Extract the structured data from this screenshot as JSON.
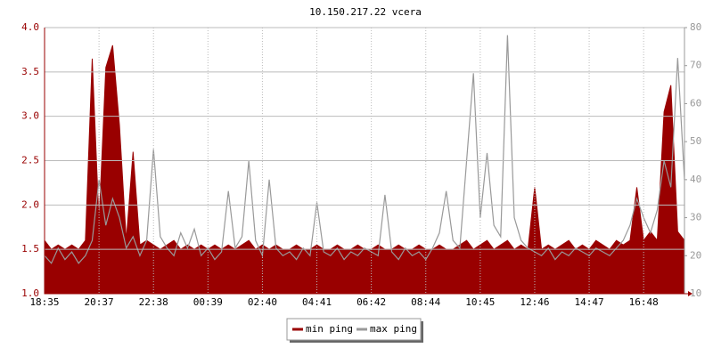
{
  "chart_data": {
    "type": "line",
    "title": "10.150.217.22 vcera",
    "categories": [
      "18:35",
      null,
      null,
      null,
      null,
      null,
      null,
      null,
      "20:37",
      null,
      null,
      null,
      null,
      null,
      null,
      null,
      "22:38",
      null,
      null,
      null,
      null,
      null,
      null,
      null,
      "00:39",
      null,
      null,
      null,
      null,
      null,
      null,
      null,
      "02:40",
      null,
      null,
      null,
      null,
      null,
      null,
      null,
      "04:41",
      null,
      null,
      null,
      null,
      null,
      null,
      null,
      "06:42",
      null,
      null,
      null,
      null,
      null,
      null,
      null,
      "08:44",
      null,
      null,
      null,
      null,
      null,
      null,
      null,
      "10:45",
      null,
      null,
      null,
      null,
      null,
      null,
      null,
      "12:46",
      null,
      null,
      null,
      null,
      null,
      null,
      null,
      "14:47",
      null,
      null,
      null,
      null,
      null,
      null,
      null,
      "16:48",
      null,
      null,
      null,
      null,
      null,
      null
    ],
    "series": [
      {
        "name": "min ping",
        "color": "#990000",
        "axis": "y",
        "values": [
          1.6,
          1.5,
          1.55,
          1.5,
          1.55,
          1.5,
          1.6,
          3.65,
          1.8,
          3.55,
          3.8,
          2.9,
          1.6,
          2.6,
          1.55,
          1.6,
          1.55,
          1.5,
          1.55,
          1.6,
          1.5,
          1.55,
          1.5,
          1.55,
          1.5,
          1.55,
          1.5,
          1.55,
          1.5,
          1.55,
          1.6,
          1.5,
          1.55,
          1.5,
          1.55,
          1.5,
          1.5,
          1.55,
          1.5,
          1.5,
          1.55,
          1.5,
          1.5,
          1.55,
          1.5,
          1.5,
          1.55,
          1.5,
          1.5,
          1.55,
          1.5,
          1.5,
          1.55,
          1.5,
          1.5,
          1.55,
          1.5,
          1.5,
          1.55,
          1.5,
          1.5,
          1.55,
          1.6,
          1.5,
          1.55,
          1.6,
          1.5,
          1.55,
          1.6,
          1.5,
          1.55,
          1.5,
          2.2,
          1.5,
          1.55,
          1.5,
          1.55,
          1.6,
          1.5,
          1.55,
          1.5,
          1.6,
          1.55,
          1.5,
          1.6,
          1.55,
          1.6,
          2.2,
          1.6,
          1.7,
          1.6,
          3.05,
          3.35,
          1.7,
          1.6
        ]
      },
      {
        "name": "max ping",
        "color": "#999999",
        "axis": "y2",
        "values": [
          20,
          18,
          22,
          19,
          21,
          18,
          20,
          24,
          40,
          28,
          35,
          30,
          22,
          25,
          20,
          24,
          48,
          25,
          22,
          20,
          26,
          22,
          27,
          20,
          22,
          19,
          21,
          37,
          22,
          25,
          45,
          24,
          20,
          40,
          22,
          20,
          21,
          19,
          22,
          20,
          34,
          21,
          20,
          22,
          19,
          21,
          20,
          22,
          21,
          20,
          36,
          21,
          19,
          22,
          20,
          21,
          19,
          22,
          26,
          37,
          24,
          22,
          45,
          68,
          30,
          47,
          28,
          25,
          78,
          30,
          24,
          22,
          21,
          20,
          22,
          19,
          21,
          20,
          22,
          21,
          20,
          22,
          21,
          20,
          22,
          24,
          28,
          35,
          30,
          26,
          32,
          45,
          38,
          72,
          40
        ]
      }
    ],
    "ylim": [
      1,
      4
    ],
    "yticks": [
      {
        "value": 1,
        "label": "1.0"
      },
      1.5,
      {
        "value": 2,
        "label": "2.0"
      },
      2.5,
      {
        "value": 3,
        "label": "3.0"
      },
      3.5,
      {
        "value": 4,
        "label": "4.0"
      }
    ],
    "y2lim": [
      10,
      80
    ],
    "y2ticks": [
      10,
      20,
      30,
      40,
      50,
      60,
      70,
      80
    ],
    "grid": true
  }
}
